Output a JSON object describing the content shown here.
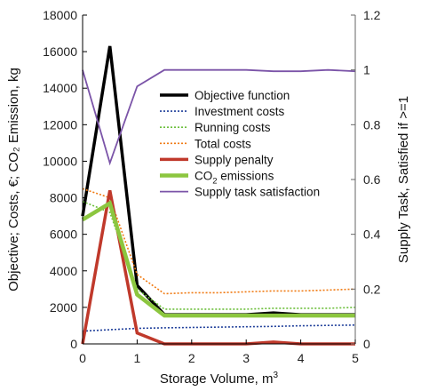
{
  "chart_data": {
    "type": "line",
    "x": [
      0,
      0.5,
      1,
      1.5,
      2,
      2.5,
      3,
      3.5,
      4,
      4.5,
      5
    ],
    "xlabel": "Storage Volume, m",
    "xlabel_sup": "3",
    "ylabel": "Objective; Costs, €; CO₂ Emission, kg",
    "y2label": "Supply Task, Satisfied if >=1",
    "xlim": [
      0,
      5
    ],
    "ylim": [
      0,
      18000
    ],
    "y2lim": [
      0,
      1.2
    ],
    "x_ticks": [
      "0",
      "1",
      "2",
      "3",
      "4",
      "5"
    ],
    "y_ticks": [
      "0",
      "2000",
      "4000",
      "6000",
      "8000",
      "10000",
      "12000",
      "14000",
      "16000",
      "18000"
    ],
    "y2_ticks": [
      "0",
      "0.2",
      "0.4",
      "0.6",
      "0.8",
      "1",
      "1.2"
    ],
    "legend_position": "center-right",
    "series": [
      {
        "name": "Objective function",
        "axis": "left",
        "color": "#000000",
        "width": 3.5,
        "dash": "",
        "values": [
          7000,
          16300,
          3200,
          1600,
          1600,
          1600,
          1600,
          1700,
          1600,
          1600,
          1600
        ]
      },
      {
        "name": "Investment costs",
        "axis": "left",
        "color": "#1f3f9a",
        "width": 1.6,
        "dash": "2,2",
        "values": [
          700,
          780,
          850,
          880,
          900,
          920,
          940,
          960,
          990,
          1010,
          1030
        ]
      },
      {
        "name": "Running costs",
        "axis": "left",
        "color": "#6cbf3c",
        "width": 1.6,
        "dash": "2,2",
        "values": [
          7800,
          7200,
          3000,
          1900,
          1900,
          1900,
          1900,
          1950,
          1950,
          1950,
          2000
        ]
      },
      {
        "name": "Total costs",
        "axis": "left",
        "color": "#f07a12",
        "width": 1.6,
        "dash": "2,2",
        "values": [
          8500,
          8000,
          3800,
          2750,
          2800,
          2800,
          2850,
          2900,
          2900,
          2950,
          3000
        ]
      },
      {
        "name": "Supply penalty",
        "axis": "left",
        "color": "#c0392b",
        "width": 3.5,
        "dash": "",
        "values": [
          0,
          8400,
          600,
          0,
          0,
          0,
          0,
          100,
          0,
          0,
          0
        ]
      },
      {
        "name": "CO",
        "name_sub": "2",
        "name_rest": " emissions",
        "axis": "left",
        "color": "#8cc63f",
        "width": 4.5,
        "dash": "",
        "values": [
          6800,
          7700,
          2700,
          1550,
          1550,
          1550,
          1550,
          1550,
          1550,
          1550,
          1550
        ]
      },
      {
        "name": "Supply task satisfaction",
        "axis": "right",
        "color": "#7b54a8",
        "width": 1.8,
        "dash": "",
        "values": [
          1.0,
          0.66,
          0.94,
          1.0,
          1.0,
          1.0,
          1.0,
          0.995,
          0.995,
          1.0,
          0.995
        ]
      }
    ]
  }
}
